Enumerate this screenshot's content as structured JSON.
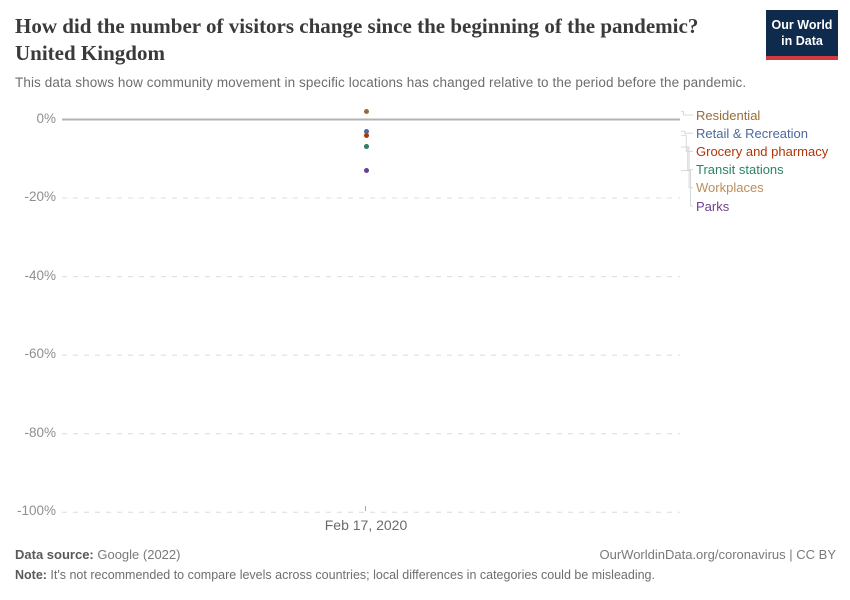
{
  "header": {
    "title": "How did the number of visitors change since the beginning of the pandemic? United Kingdom",
    "subtitle": "This data shows how community movement in specific locations has changed relative to the period before the pandemic.",
    "logo": {
      "line1": "Our World",
      "line2": "in Data",
      "bg_color": "#0E2A4D",
      "bar_color": "#D13B3B"
    }
  },
  "chart_data": {
    "type": "scatter",
    "title": "How did the number of visitors change since the beginning of the pandemic? United Kingdom",
    "x": [
      "Feb 17, 2020"
    ],
    "x_tick_label": "Feb 17, 2020",
    "xlabel": "",
    "ylabel": "",
    "ylim": [
      -100,
      2
    ],
    "yticks": [
      {
        "value": 0,
        "label": "0%"
      },
      {
        "value": -20,
        "label": "-20%"
      },
      {
        "value": -40,
        "label": "-40%"
      },
      {
        "value": -60,
        "label": "-60%"
      },
      {
        "value": -80,
        "label": "-80%"
      },
      {
        "value": -100,
        "label": "-100%"
      }
    ],
    "grid": "horizontal-dashed",
    "legend_position": "right",
    "series": [
      {
        "name": "Residential",
        "color": "#996D39",
        "values": [
          2
        ]
      },
      {
        "name": "Retail & Recreation",
        "color": "#4C6A9C",
        "values": [
          -3
        ]
      },
      {
        "name": "Grocery and pharmacy",
        "color": "#B13507",
        "values": [
          -4
        ]
      },
      {
        "name": "Transit stations",
        "color": "#2C8465",
        "values": [
          -7
        ]
      },
      {
        "name": "Workplaces",
        "color": "#BC8E5A",
        "values": [
          -7
        ]
      },
      {
        "name": "Parks",
        "color": "#6D3E91",
        "values": [
          -13
        ]
      }
    ]
  },
  "footer": {
    "source_label": "Data source:",
    "source_value": " Google (2022)",
    "link": "OurWorldinData.org/coronavirus | CC BY",
    "note_label": "Note:",
    "note_value": " It's not recommended to compare levels across countries; local differences in categories could be misleading."
  }
}
